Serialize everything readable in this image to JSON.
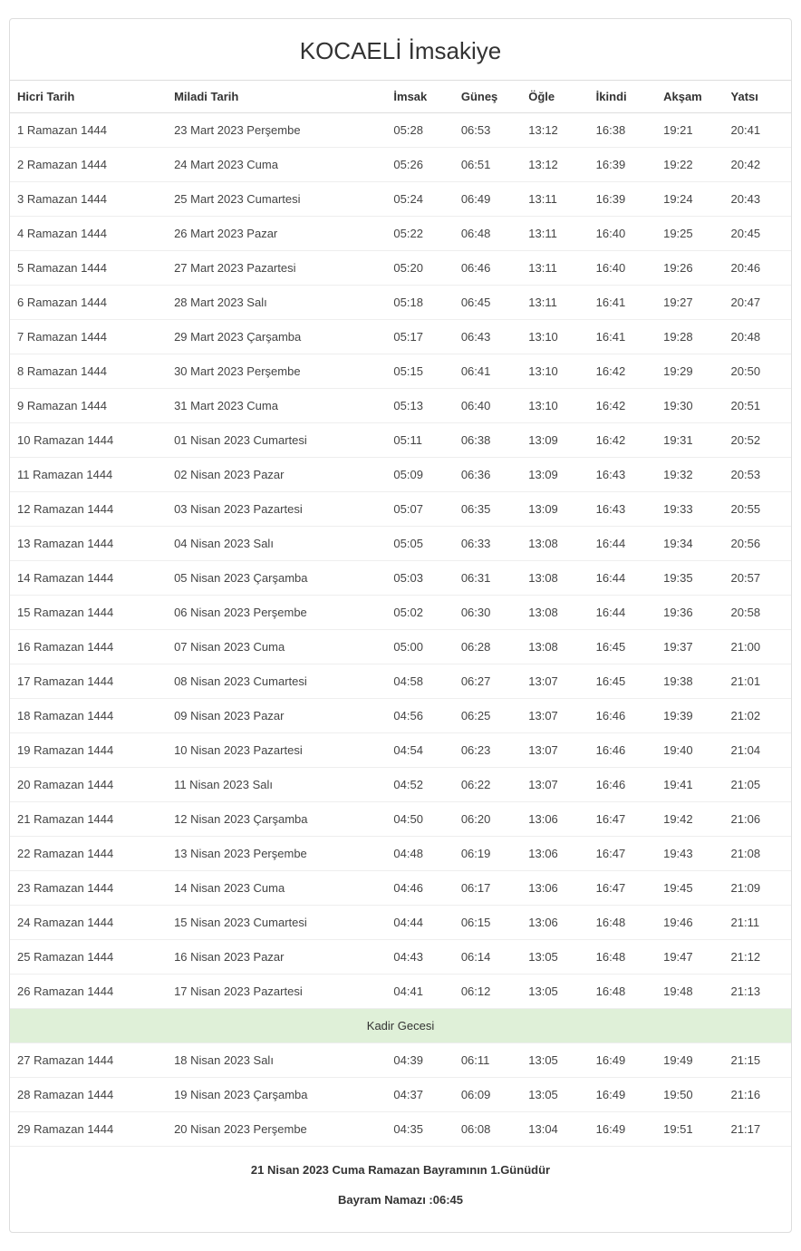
{
  "title": "KOCAELİ İmsakiye",
  "columns": [
    "Hicri Tarih",
    "Miladi Tarih",
    "İmsak",
    "Güneş",
    "Öğle",
    "İkindi",
    "Akşam",
    "Yatsı"
  ],
  "rows": [
    {
      "hicri": "1 Ramazan 1444",
      "miladi": "23 Mart 2023 Perşembe",
      "imsak": "05:28",
      "gunes": "06:53",
      "ogle": "13:12",
      "ikindi": "16:38",
      "aksam": "19:21",
      "yatsi": "20:41"
    },
    {
      "hicri": "2 Ramazan 1444",
      "miladi": "24 Mart 2023 Cuma",
      "imsak": "05:26",
      "gunes": "06:51",
      "ogle": "13:12",
      "ikindi": "16:39",
      "aksam": "19:22",
      "yatsi": "20:42"
    },
    {
      "hicri": "3 Ramazan 1444",
      "miladi": "25 Mart 2023 Cumartesi",
      "imsak": "05:24",
      "gunes": "06:49",
      "ogle": "13:11",
      "ikindi": "16:39",
      "aksam": "19:24",
      "yatsi": "20:43"
    },
    {
      "hicri": "4 Ramazan 1444",
      "miladi": "26 Mart 2023 Pazar",
      "imsak": "05:22",
      "gunes": "06:48",
      "ogle": "13:11",
      "ikindi": "16:40",
      "aksam": "19:25",
      "yatsi": "20:45"
    },
    {
      "hicri": "5 Ramazan 1444",
      "miladi": "27 Mart 2023 Pazartesi",
      "imsak": "05:20",
      "gunes": "06:46",
      "ogle": "13:11",
      "ikindi": "16:40",
      "aksam": "19:26",
      "yatsi": "20:46"
    },
    {
      "hicri": "6 Ramazan 1444",
      "miladi": "28 Mart 2023 Salı",
      "imsak": "05:18",
      "gunes": "06:45",
      "ogle": "13:11",
      "ikindi": "16:41",
      "aksam": "19:27",
      "yatsi": "20:47"
    },
    {
      "hicri": "7 Ramazan 1444",
      "miladi": "29 Mart 2023 Çarşamba",
      "imsak": "05:17",
      "gunes": "06:43",
      "ogle": "13:10",
      "ikindi": "16:41",
      "aksam": "19:28",
      "yatsi": "20:48"
    },
    {
      "hicri": "8 Ramazan 1444",
      "miladi": "30 Mart 2023 Perşembe",
      "imsak": "05:15",
      "gunes": "06:41",
      "ogle": "13:10",
      "ikindi": "16:42",
      "aksam": "19:29",
      "yatsi": "20:50"
    },
    {
      "hicri": "9 Ramazan 1444",
      "miladi": "31 Mart 2023 Cuma",
      "imsak": "05:13",
      "gunes": "06:40",
      "ogle": "13:10",
      "ikindi": "16:42",
      "aksam": "19:30",
      "yatsi": "20:51"
    },
    {
      "hicri": "10 Ramazan 1444",
      "miladi": "01 Nisan 2023 Cumartesi",
      "imsak": "05:11",
      "gunes": "06:38",
      "ogle": "13:09",
      "ikindi": "16:42",
      "aksam": "19:31",
      "yatsi": "20:52"
    },
    {
      "hicri": "11 Ramazan 1444",
      "miladi": "02 Nisan 2023 Pazar",
      "imsak": "05:09",
      "gunes": "06:36",
      "ogle": "13:09",
      "ikindi": "16:43",
      "aksam": "19:32",
      "yatsi": "20:53"
    },
    {
      "hicri": "12 Ramazan 1444",
      "miladi": "03 Nisan 2023 Pazartesi",
      "imsak": "05:07",
      "gunes": "06:35",
      "ogle": "13:09",
      "ikindi": "16:43",
      "aksam": "19:33",
      "yatsi": "20:55"
    },
    {
      "hicri": "13 Ramazan 1444",
      "miladi": "04 Nisan 2023 Salı",
      "imsak": "05:05",
      "gunes": "06:33",
      "ogle": "13:08",
      "ikindi": "16:44",
      "aksam": "19:34",
      "yatsi": "20:56"
    },
    {
      "hicri": "14 Ramazan 1444",
      "miladi": "05 Nisan 2023 Çarşamba",
      "imsak": "05:03",
      "gunes": "06:31",
      "ogle": "13:08",
      "ikindi": "16:44",
      "aksam": "19:35",
      "yatsi": "20:57"
    },
    {
      "hicri": "15 Ramazan 1444",
      "miladi": "06 Nisan 2023 Perşembe",
      "imsak": "05:02",
      "gunes": "06:30",
      "ogle": "13:08",
      "ikindi": "16:44",
      "aksam": "19:36",
      "yatsi": "20:58"
    },
    {
      "hicri": "16 Ramazan 1444",
      "miladi": "07 Nisan 2023 Cuma",
      "imsak": "05:00",
      "gunes": "06:28",
      "ogle": "13:08",
      "ikindi": "16:45",
      "aksam": "19:37",
      "yatsi": "21:00"
    },
    {
      "hicri": "17 Ramazan 1444",
      "miladi": "08 Nisan 2023 Cumartesi",
      "imsak": "04:58",
      "gunes": "06:27",
      "ogle": "13:07",
      "ikindi": "16:45",
      "aksam": "19:38",
      "yatsi": "21:01"
    },
    {
      "hicri": "18 Ramazan 1444",
      "miladi": "09 Nisan 2023 Pazar",
      "imsak": "04:56",
      "gunes": "06:25",
      "ogle": "13:07",
      "ikindi": "16:46",
      "aksam": "19:39",
      "yatsi": "21:02"
    },
    {
      "hicri": "19 Ramazan 1444",
      "miladi": "10 Nisan 2023 Pazartesi",
      "imsak": "04:54",
      "gunes": "06:23",
      "ogle": "13:07",
      "ikindi": "16:46",
      "aksam": "19:40",
      "yatsi": "21:04"
    },
    {
      "hicri": "20 Ramazan 1444",
      "miladi": "11 Nisan 2023 Salı",
      "imsak": "04:52",
      "gunes": "06:22",
      "ogle": "13:07",
      "ikindi": "16:46",
      "aksam": "19:41",
      "yatsi": "21:05"
    },
    {
      "hicri": "21 Ramazan 1444",
      "miladi": "12 Nisan 2023 Çarşamba",
      "imsak": "04:50",
      "gunes": "06:20",
      "ogle": "13:06",
      "ikindi": "16:47",
      "aksam": "19:42",
      "yatsi": "21:06"
    },
    {
      "hicri": "22 Ramazan 1444",
      "miladi": "13 Nisan 2023 Perşembe",
      "imsak": "04:48",
      "gunes": "06:19",
      "ogle": "13:06",
      "ikindi": "16:47",
      "aksam": "19:43",
      "yatsi": "21:08"
    },
    {
      "hicri": "23 Ramazan 1444",
      "miladi": "14 Nisan 2023 Cuma",
      "imsak": "04:46",
      "gunes": "06:17",
      "ogle": "13:06",
      "ikindi": "16:47",
      "aksam": "19:45",
      "yatsi": "21:09"
    },
    {
      "hicri": "24 Ramazan 1444",
      "miladi": "15 Nisan 2023 Cumartesi",
      "imsak": "04:44",
      "gunes": "06:15",
      "ogle": "13:06",
      "ikindi": "16:48",
      "aksam": "19:46",
      "yatsi": "21:11"
    },
    {
      "hicri": "25 Ramazan 1444",
      "miladi": "16 Nisan 2023 Pazar",
      "imsak": "04:43",
      "gunes": "06:14",
      "ogle": "13:05",
      "ikindi": "16:48",
      "aksam": "19:47",
      "yatsi": "21:12"
    },
    {
      "hicri": "26 Ramazan 1444",
      "miladi": "17 Nisan 2023 Pazartesi",
      "imsak": "04:41",
      "gunes": "06:12",
      "ogle": "13:05",
      "ikindi": "16:48",
      "aksam": "19:48",
      "yatsi": "21:13"
    },
    {
      "special": true,
      "label": "Kadir Gecesi"
    },
    {
      "hicri": "27 Ramazan 1444",
      "miladi": "18 Nisan 2023 Salı",
      "imsak": "04:39",
      "gunes": "06:11",
      "ogle": "13:05",
      "ikindi": "16:49",
      "aksam": "19:49",
      "yatsi": "21:15"
    },
    {
      "hicri": "28 Ramazan 1444",
      "miladi": "19 Nisan 2023 Çarşamba",
      "imsak": "04:37",
      "gunes": "06:09",
      "ogle": "13:05",
      "ikindi": "16:49",
      "aksam": "19:50",
      "yatsi": "21:16"
    },
    {
      "hicri": "29 Ramazan 1444",
      "miladi": "20 Nisan 2023 Perşembe",
      "imsak": "04:35",
      "gunes": "06:08",
      "ogle": "13:04",
      "ikindi": "16:49",
      "aksam": "19:51",
      "yatsi": "21:17"
    }
  ],
  "footer": {
    "line1": "21 Nisan 2023 Cuma Ramazan Bayramının 1.Günüdür",
    "line2": "Bayram Namazı :06:45"
  },
  "styling": {
    "title_fontsize": 26,
    "body_fontsize": 13,
    "border_color": "#dddddd",
    "row_border_color": "#eeeeee",
    "special_row_bg": "#dff0d8",
    "text_color": "#333333",
    "background_color": "#ffffff"
  }
}
